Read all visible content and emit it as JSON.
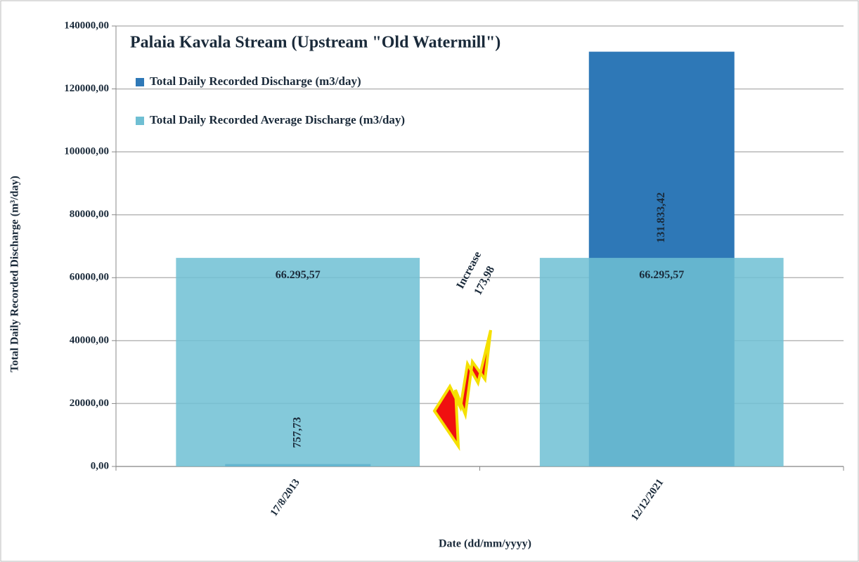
{
  "chart_data": {
    "type": "bar",
    "title": "Palaia Kavala Stream (Upstream \"Old Watermill\")",
    "x_label": "Date (dd/mm/yyyy)",
    "y_label": "Total Daily Recorded Discharge (m³/day)",
    "categories": [
      "17/8/2013",
      "12/12/2021"
    ],
    "series": [
      {
        "name": "Total Daily Recorded Discharge (m3/day)",
        "color": "#2e78b7",
        "values": [
          757.73,
          131833.42
        ],
        "value_labels": [
          "757,73",
          "131.833,42"
        ]
      },
      {
        "name": "Total Daily Recorded Average Discharge (m3/day)",
        "color": "#6fbfd3",
        "values": [
          66295.57,
          66295.57
        ],
        "value_labels": [
          "66.295,57",
          "66.295,57"
        ]
      }
    ],
    "annotation": [
      "Increase",
      "173,98"
    ],
    "ylim": [
      0,
      140000
    ],
    "yticks": [
      {
        "value": 0,
        "label": "0,00"
      },
      {
        "value": 20000,
        "label": "20000,00"
      },
      {
        "value": 40000,
        "label": "40000,00"
      },
      {
        "value": 60000,
        "label": "60000,00"
      },
      {
        "value": 80000,
        "label": "80000,00"
      },
      {
        "value": 100000,
        "label": "100000,00"
      },
      {
        "value": 120000,
        "label": "120000,00"
      },
      {
        "value": 140000,
        "label": "140000,00"
      }
    ],
    "grid": true
  }
}
